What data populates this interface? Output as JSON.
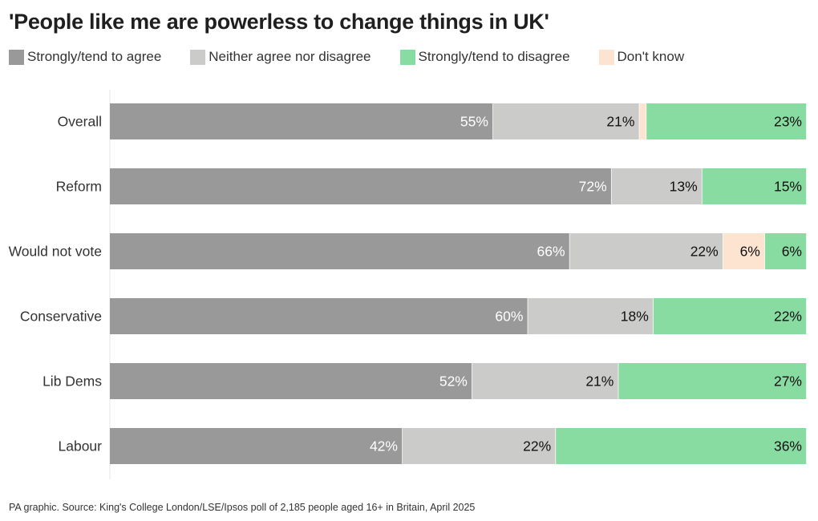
{
  "chart_data": {
    "type": "bar",
    "orientation": "horizontal",
    "stacked": true,
    "title": "'People like me are powerless to change things in UK'",
    "categories": [
      "Overall",
      "Reform",
      "Would not vote",
      "Conservative",
      "Lib Dems",
      "Labour"
    ],
    "series": [
      {
        "name": "Strongly/tend to agree",
        "color": "#999999",
        "label_color": "#ffffff",
        "values": [
          55,
          72,
          66,
          60,
          52,
          42
        ],
        "labels": [
          "55%",
          "72%",
          "66%",
          "60%",
          "52%",
          "42%"
        ]
      },
      {
        "name": "Neither agree nor disagree",
        "color": "#cbcbc9",
        "label_color": "#111111",
        "values": [
          21,
          13,
          22,
          18,
          21,
          22
        ],
        "labels": [
          "21%",
          "13%",
          "22%",
          "18%",
          "21%",
          "22%"
        ]
      },
      {
        "name": "Don't know",
        "color": "#fce4d0",
        "label_color": "#111111",
        "values": [
          1,
          0,
          6,
          0,
          0,
          0
        ],
        "labels": [
          "",
          "",
          "6%",
          "",
          "",
          ""
        ]
      },
      {
        "name": "Strongly/tend to disagree",
        "color": "#88dca1",
        "label_color": "#111111",
        "values": [
          23,
          15,
          6,
          22,
          27,
          36
        ],
        "labels": [
          "23%",
          "15%",
          "6%",
          "22%",
          "27%",
          "36%"
        ]
      }
    ],
    "xlim": [
      0,
      100
    ],
    "xlabel": "",
    "ylabel": "",
    "grid": false,
    "legend": "top-left"
  },
  "legend": {
    "items": [
      {
        "label": "Strongly/tend to agree",
        "color": "#999999"
      },
      {
        "label": "Neither agree nor disagree",
        "color": "#cbcbc9"
      },
      {
        "label": "Strongly/tend to disagree",
        "color": "#88dca1"
      },
      {
        "label": "Don't know",
        "color": "#fce4d0"
      }
    ]
  },
  "footer": "PA graphic. Source: King's College London/LSE/Ipsos poll of 2,185 people aged 16+ in Britain, April 2025"
}
